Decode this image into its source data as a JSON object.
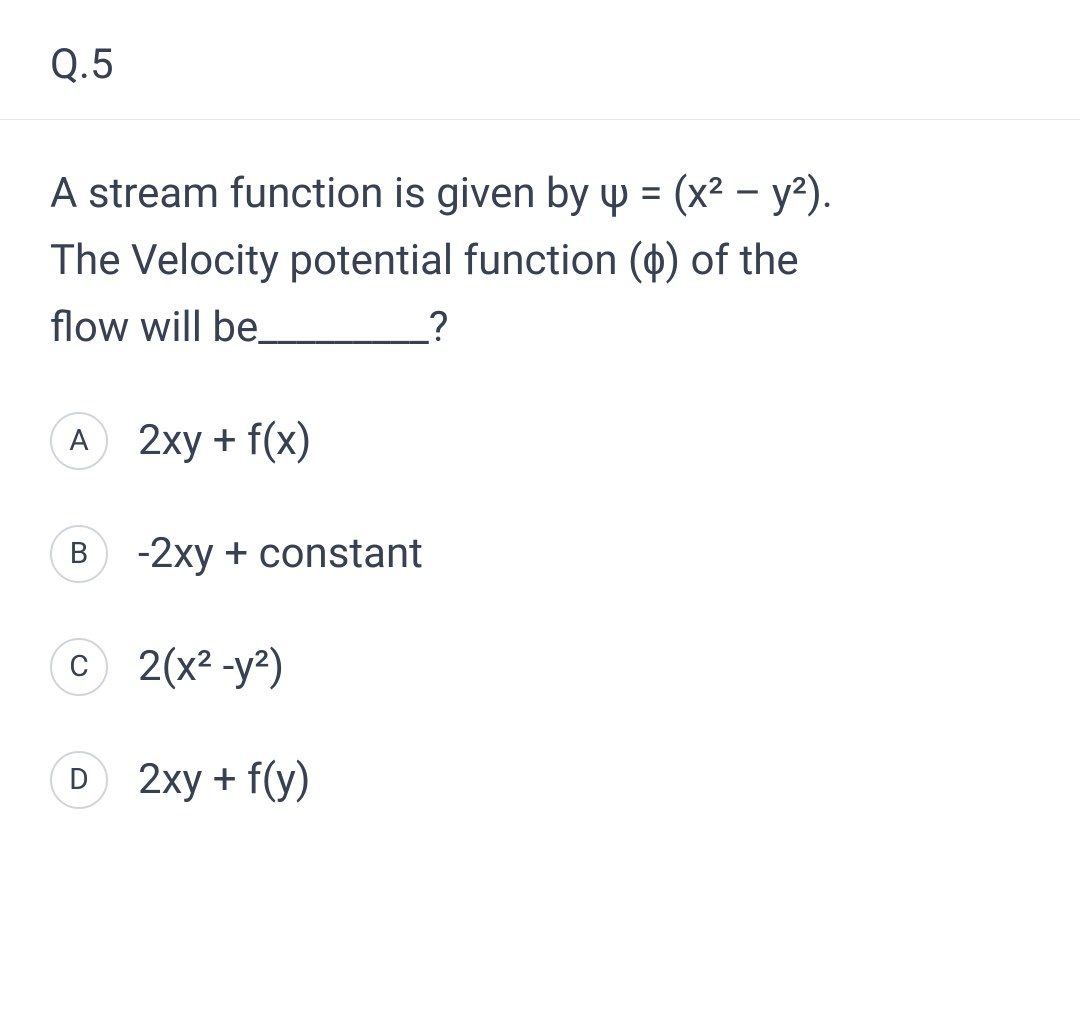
{
  "question": {
    "number": "Q.5",
    "text_line1": "A stream function is given by ψ = (x² – y²).",
    "text_line2": "The Velocity potential function (ɸ) of the",
    "text_line3": "flow will be_________?"
  },
  "options": [
    {
      "letter": "A",
      "text": "2xy + f(x)"
    },
    {
      "letter": "B",
      "text": "-2xy + constant"
    },
    {
      "letter": "C",
      "text": "2(x² -y²)"
    },
    {
      "letter": "D",
      "text": "2xy + f(y)"
    }
  ],
  "styling": {
    "background_color": "#ffffff",
    "text_color": "#374151",
    "border_color": "#e5e7eb",
    "option_circle_border": "#d1d5db",
    "question_fontsize": 42,
    "option_fontsize": 42,
    "option_letter_fontsize": 30,
    "header_fontsize": 42
  }
}
